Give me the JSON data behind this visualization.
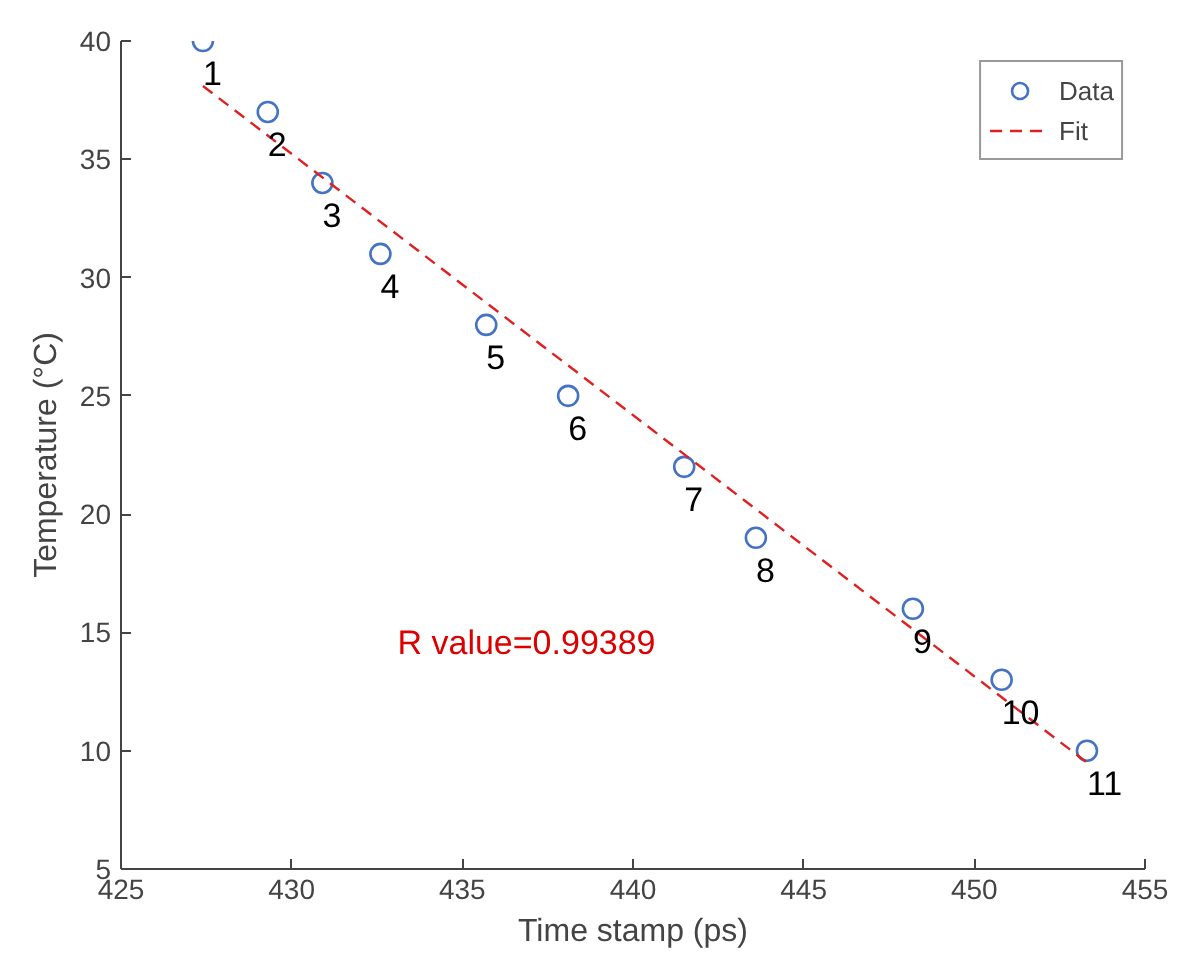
{
  "chart_data": {
    "type": "scatter",
    "xlabel": "Time stamp (ps)",
    "ylabel": "Temperature (°C)",
    "xlim": [
      425,
      455
    ],
    "xticks": [
      425,
      430,
      435,
      440,
      445,
      450,
      455
    ],
    "ylim": [
      5,
      40
    ],
    "yticks": [
      5,
      10,
      15,
      20,
      25,
      30,
      35,
      40
    ],
    "grid": false,
    "legend": "top right",
    "series": [
      {
        "name": "Data",
        "marker": "circle",
        "color": "#4472c4",
        "x": [
          427.4,
          429.3,
          430.9,
          432.6,
          435.7,
          438.1,
          441.5,
          443.6,
          448.2,
          450.8,
          453.3
        ],
        "values": [
          40,
          37,
          34,
          31,
          28,
          25,
          22,
          19,
          16,
          13,
          10
        ]
      },
      {
        "name": "Fit",
        "type": "line",
        "line_style": "dashed",
        "marker": "none",
        "color": "#e02020",
        "x": [
          427.4,
          453.3
        ],
        "values": [
          38.1,
          9.5
        ]
      }
    ],
    "annotations": [
      {
        "text": "1",
        "x": 427.4,
        "y": 40
      },
      {
        "text": "2",
        "x": 429.3,
        "y": 37
      },
      {
        "text": "3",
        "x": 430.9,
        "y": 34
      },
      {
        "text": "4",
        "x": 432.6,
        "y": 31
      },
      {
        "text": "5",
        "x": 435.7,
        "y": 28
      },
      {
        "text": "6",
        "x": 438.1,
        "y": 25
      },
      {
        "text": "7",
        "x": 441.5,
        "y": 22
      },
      {
        "text": "8",
        "x": 443.6,
        "y": 19
      },
      {
        "text": "9",
        "x": 448.2,
        "y": 16
      },
      {
        "text": "10",
        "x": 450.8,
        "y": 13
      },
      {
        "text": "11",
        "x": 453.3,
        "y": 10
      },
      "R value=0.99389"
    ]
  }
}
